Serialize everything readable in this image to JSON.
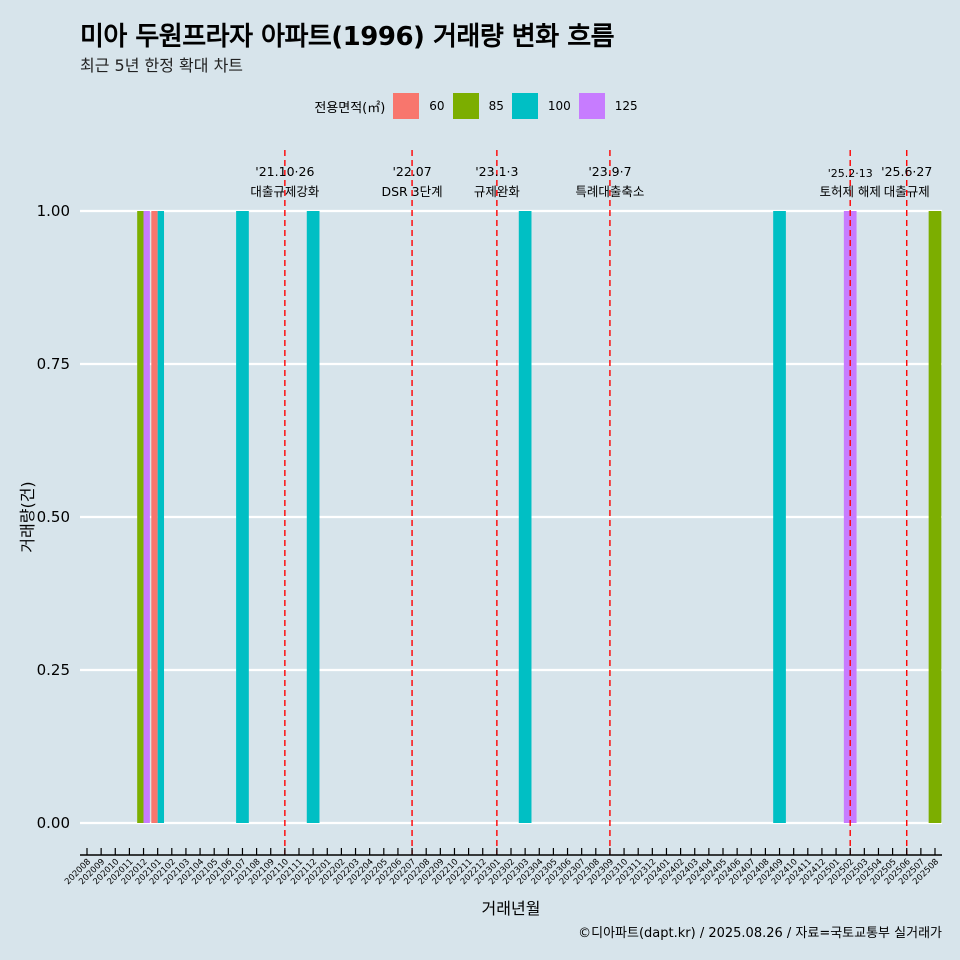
{
  "chart_data": {
    "type": "bar",
    "title": "미아 두원프라자 아파트(1996) 거래량 변화 흐름",
    "subtitle": "최근 5년 한정 확대 차트",
    "xlabel": "거래년월",
    "ylabel": "거래량(건)",
    "ylim": [
      0,
      1
    ],
    "yticks": [
      "0.00",
      "0.25",
      "0.50",
      "0.75",
      "1.00"
    ],
    "ytick_values": [
      0,
      0.25,
      0.5,
      0.75,
      1
    ],
    "grid": true,
    "legend": {
      "title": "전용면적(㎡)",
      "position": "top",
      "entries": [
        {
          "label": "60",
          "color": "#f8766d"
        },
        {
          "label": "85",
          "color": "#7cae00"
        },
        {
          "label": "100",
          "color": "#00bfc4"
        },
        {
          "label": "125",
          "color": "#c77cff"
        }
      ]
    },
    "categories": [
      "202008",
      "202009",
      "202010",
      "202011",
      "202012",
      "202101",
      "202102",
      "202103",
      "202104",
      "202105",
      "202106",
      "202107",
      "202108",
      "202109",
      "202110",
      "202111",
      "202112",
      "202201",
      "202202",
      "202203",
      "202204",
      "202205",
      "202206",
      "202207",
      "202208",
      "202209",
      "202210",
      "202211",
      "202212",
      "202301",
      "202302",
      "202303",
      "202304",
      "202305",
      "202306",
      "202307",
      "202308",
      "202309",
      "202310",
      "202311",
      "202312",
      "202401",
      "202402",
      "202403",
      "202404",
      "202405",
      "202406",
      "202407",
      "202408",
      "202409",
      "202410",
      "202411",
      "202412",
      "202501",
      "202502",
      "202503",
      "202504",
      "202505",
      "202506",
      "202507",
      "202508"
    ],
    "bars": [
      {
        "month": "202012",
        "series": [
          "85",
          "125"
        ],
        "values": [
          1,
          1
        ]
      },
      {
        "month": "202101",
        "series": [
          "60",
          "100"
        ],
        "values": [
          1,
          1
        ]
      },
      {
        "month": "202107",
        "series": [
          "100"
        ],
        "values": [
          1
        ]
      },
      {
        "month": "202112",
        "series": [
          "100"
        ],
        "values": [
          1
        ]
      },
      {
        "month": "202303",
        "series": [
          "100"
        ],
        "values": [
          1
        ]
      },
      {
        "month": "202409",
        "series": [
          "100"
        ],
        "values": [
          1
        ]
      },
      {
        "month": "202502",
        "series": [
          "125"
        ],
        "values": [
          1
        ]
      },
      {
        "month": "202508",
        "series": [
          "85"
        ],
        "values": [
          1
        ]
      }
    ],
    "annotations": [
      {
        "month": "202110",
        "date": "'21.10·26",
        "label": "대출규제강화"
      },
      {
        "month": "202207",
        "date": "'22.07",
        "label": "DSR 3단계"
      },
      {
        "month": "202301",
        "date": "'23.1·3",
        "label": "규제완화"
      },
      {
        "month": "202309",
        "date": "'23.9·7",
        "label": "특례대출축소"
      },
      {
        "month": "202502",
        "date": "'25.2·13",
        "label": "토허제 해제"
      },
      {
        "month": "202506",
        "date": "'25.6·27",
        "label": "대출규제"
      }
    ],
    "vline_color": "#ff0000"
  },
  "caption": "©디아파트(dapt.kr) / 2025.08.26 / 자료=국토교통부 실거래가"
}
